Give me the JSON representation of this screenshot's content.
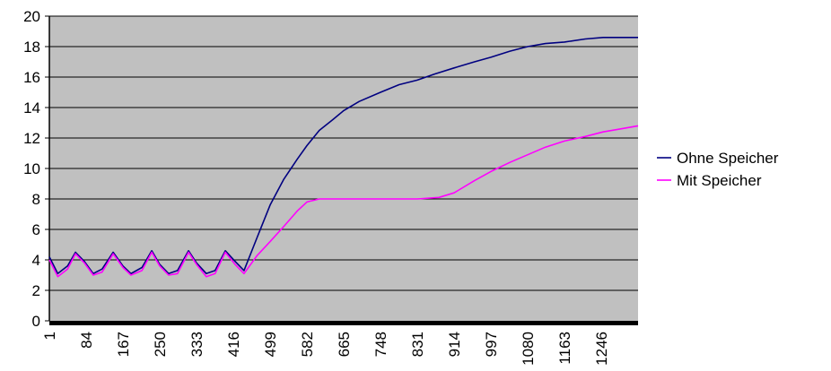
{
  "chart_data": {
    "type": "line",
    "title": "",
    "xlabel": "",
    "ylabel": "",
    "xlim": [
      1,
      1329
    ],
    "ylim": [
      0,
      20
    ],
    "y_ticks": [
      0,
      2,
      4,
      6,
      8,
      10,
      12,
      14,
      16,
      18,
      20
    ],
    "x_tick_labels": [
      "1",
      "84",
      "167",
      "250",
      "333",
      "416",
      "499",
      "582",
      "665",
      "748",
      "831",
      "914",
      "997",
      "1080",
      "1163",
      "1246"
    ],
    "grid": "horizontal",
    "plot_background": "#c0c0c0",
    "legend_position": "right",
    "series": [
      {
        "name": "Ohne Speicher",
        "color": "#000080",
        "points": [
          [
            1,
            4.2
          ],
          [
            20,
            3.1
          ],
          [
            42,
            3.6
          ],
          [
            60,
            4.5
          ],
          [
            80,
            3.9
          ],
          [
            100,
            3.1
          ],
          [
            120,
            3.4
          ],
          [
            145,
            4.5
          ],
          [
            167,
            3.6
          ],
          [
            185,
            3.1
          ],
          [
            210,
            3.5
          ],
          [
            232,
            4.6
          ],
          [
            250,
            3.7
          ],
          [
            270,
            3.1
          ],
          [
            290,
            3.3
          ],
          [
            315,
            4.6
          ],
          [
            333,
            3.8
          ],
          [
            355,
            3.1
          ],
          [
            375,
            3.3
          ],
          [
            398,
            4.6
          ],
          [
            420,
            3.9
          ],
          [
            440,
            3.3
          ],
          [
            470,
            5.5
          ],
          [
            499,
            7.6
          ],
          [
            530,
            9.3
          ],
          [
            560,
            10.6
          ],
          [
            582,
            11.5
          ],
          [
            610,
            12.5
          ],
          [
            640,
            13.2
          ],
          [
            665,
            13.8
          ],
          [
            700,
            14.4
          ],
          [
            748,
            15.0
          ],
          [
            790,
            15.5
          ],
          [
            831,
            15.8
          ],
          [
            870,
            16.2
          ],
          [
            914,
            16.6
          ],
          [
            960,
            17.0
          ],
          [
            997,
            17.3
          ],
          [
            1040,
            17.7
          ],
          [
            1080,
            18.0
          ],
          [
            1120,
            18.2
          ],
          [
            1163,
            18.3
          ],
          [
            1210,
            18.5
          ],
          [
            1250,
            18.6
          ],
          [
            1329,
            18.6
          ]
        ]
      },
      {
        "name": "Mit Speicher",
        "color": "#ff00ff",
        "points": [
          [
            1,
            4.0
          ],
          [
            20,
            2.9
          ],
          [
            42,
            3.4
          ],
          [
            60,
            4.4
          ],
          [
            80,
            3.8
          ],
          [
            100,
            3.0
          ],
          [
            120,
            3.2
          ],
          [
            145,
            4.4
          ],
          [
            167,
            3.5
          ],
          [
            185,
            3.0
          ],
          [
            210,
            3.3
          ],
          [
            232,
            4.5
          ],
          [
            250,
            3.6
          ],
          [
            270,
            3.0
          ],
          [
            290,
            3.1
          ],
          [
            315,
            4.5
          ],
          [
            333,
            3.7
          ],
          [
            355,
            2.9
          ],
          [
            375,
            3.1
          ],
          [
            398,
            4.5
          ],
          [
            420,
            3.7
          ],
          [
            440,
            3.1
          ],
          [
            470,
            4.3
          ],
          [
            499,
            5.2
          ],
          [
            530,
            6.2
          ],
          [
            560,
            7.2
          ],
          [
            582,
            7.8
          ],
          [
            610,
            8.0
          ],
          [
            665,
            8.0
          ],
          [
            748,
            8.0
          ],
          [
            831,
            8.0
          ],
          [
            880,
            8.1
          ],
          [
            914,
            8.4
          ],
          [
            960,
            9.2
          ],
          [
            997,
            9.8
          ],
          [
            1040,
            10.4
          ],
          [
            1080,
            10.9
          ],
          [
            1120,
            11.4
          ],
          [
            1163,
            11.8
          ],
          [
            1210,
            12.1
          ],
          [
            1250,
            12.4
          ],
          [
            1290,
            12.6
          ],
          [
            1329,
            12.8
          ]
        ]
      }
    ]
  }
}
